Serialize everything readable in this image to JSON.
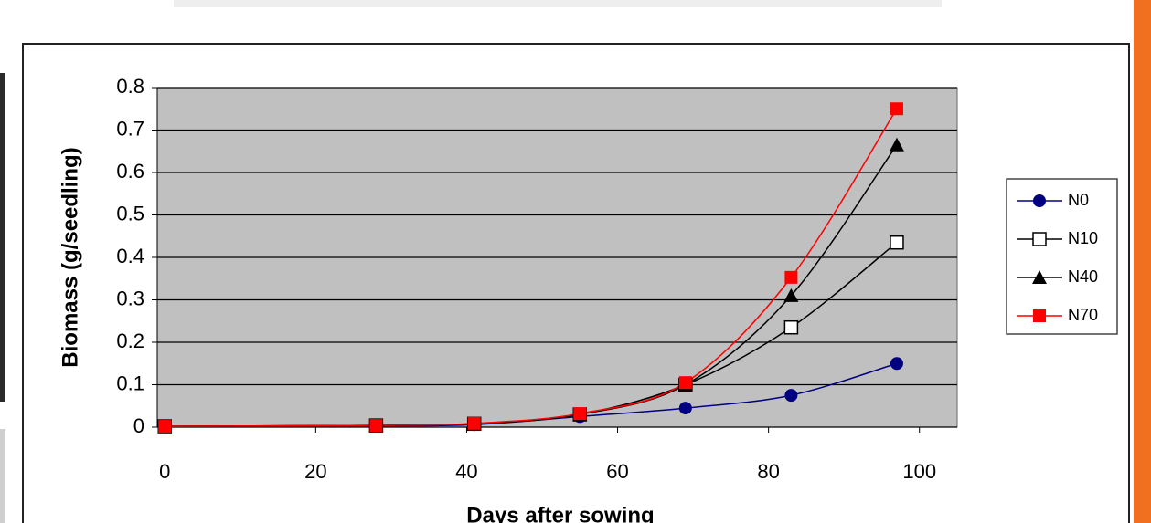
{
  "chart_data": {
    "type": "line",
    "x_label": "Days after sowing",
    "y_label": "Biomass (g/seedling)",
    "x": [
      0,
      28,
      41,
      55,
      69,
      83,
      97
    ],
    "series": [
      {
        "name": "N0",
        "color": "#000080",
        "marker": "circle",
        "values": [
          0.002,
          0.003,
          0.006,
          0.025,
          0.045,
          0.075,
          0.15
        ]
      },
      {
        "name": "N10",
        "color": "#000000",
        "marker": "open-square",
        "values": [
          0.002,
          0.004,
          0.008,
          0.03,
          0.1,
          0.235,
          0.435
        ]
      },
      {
        "name": "N40",
        "color": "#000000",
        "marker": "triangle",
        "values": [
          0.002,
          0.004,
          0.008,
          0.03,
          0.1,
          0.31,
          0.665
        ]
      },
      {
        "name": "N70",
        "color": "#ff0000",
        "marker": "square",
        "values": [
          0.002,
          0.004,
          0.009,
          0.032,
          0.105,
          0.353,
          0.75
        ]
      }
    ],
    "xlim": [
      -1,
      105
    ],
    "xticks": [
      0,
      20,
      40,
      60,
      80,
      100
    ],
    "ylim": [
      0,
      0.8
    ],
    "yticks": [
      0,
      0.1,
      0.2,
      0.3,
      0.4,
      0.5,
      0.6,
      0.7,
      0.8
    ],
    "grid": true,
    "plot_background": "#c0c0c0",
    "legend": "right"
  }
}
